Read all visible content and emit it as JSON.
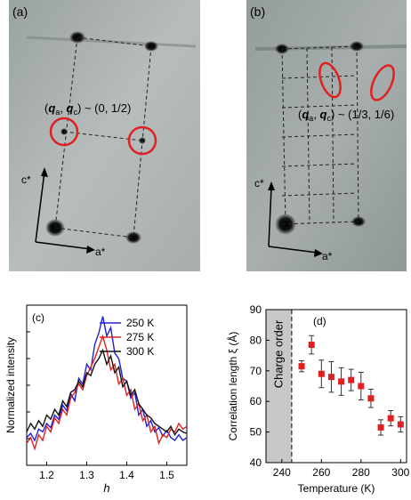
{
  "panel_a": {
    "label": "(a)",
    "annotation": {
      "prefix": "(",
      "qa": "q",
      "qa_sub": "a",
      "sep": ", ",
      "qc": "q",
      "qc_sub": "c",
      "suffix": ") ~ (0, 1/2)"
    },
    "axis_c": "c*",
    "axis_a": "a*"
  },
  "panel_b": {
    "label": "(b)",
    "annotation": {
      "prefix": "(",
      "qa": "q",
      "qa_sub": "a",
      "sep": ", ",
      "qc": "q",
      "qc_sub": "c",
      "suffix": ") ~ (1/3, 1/6)"
    },
    "axis_c": "c*",
    "axis_a": "a*"
  },
  "chart_data": [
    {
      "type": "line",
      "panel_label": "(c)",
      "xlabel": "h",
      "ylabel": "Normalized intensity",
      "xlim": [
        1.15,
        1.55
      ],
      "xticks": [
        "1.2",
        "1.3",
        "1.4",
        "1.5"
      ],
      "xtick_values": [
        1.2,
        1.3,
        1.4,
        1.5
      ],
      "legend_placement": "top-right",
      "series": [
        {
          "name": "250 K",
          "color": "#1f1fd6",
          "x": [
            1.15,
            1.16,
            1.17,
            1.18,
            1.19,
            1.2,
            1.21,
            1.22,
            1.23,
            1.24,
            1.25,
            1.26,
            1.27,
            1.28,
            1.29,
            1.3,
            1.31,
            1.32,
            1.33,
            1.34,
            1.35,
            1.36,
            1.37,
            1.38,
            1.39,
            1.4,
            1.41,
            1.42,
            1.43,
            1.44,
            1.45,
            1.46,
            1.47,
            1.48,
            1.49,
            1.5,
            1.51,
            1.52,
            1.53,
            1.54,
            1.55
          ],
          "y": [
            0.14,
            0.17,
            0.12,
            0.2,
            0.18,
            0.24,
            0.21,
            0.3,
            0.27,
            0.37,
            0.33,
            0.45,
            0.4,
            0.56,
            0.52,
            0.66,
            0.62,
            0.8,
            0.88,
            1.0,
            0.86,
            0.92,
            0.74,
            0.7,
            0.56,
            0.54,
            0.42,
            0.46,
            0.3,
            0.34,
            0.22,
            0.26,
            0.18,
            0.21,
            0.15,
            0.19,
            0.14,
            0.12,
            0.16,
            0.12,
            0.14
          ]
        },
        {
          "name": "275 K",
          "color": "#e02020",
          "x": [
            1.15,
            1.16,
            1.17,
            1.18,
            1.19,
            1.2,
            1.21,
            1.22,
            1.23,
            1.24,
            1.25,
            1.26,
            1.27,
            1.28,
            1.29,
            1.3,
            1.31,
            1.32,
            1.33,
            1.34,
            1.35,
            1.36,
            1.37,
            1.38,
            1.39,
            1.4,
            1.41,
            1.42,
            1.43,
            1.44,
            1.45,
            1.46,
            1.47,
            1.48,
            1.49,
            1.5,
            1.51,
            1.52,
            1.53,
            1.54,
            1.55
          ],
          "y": [
            0.1,
            0.14,
            0.06,
            0.16,
            0.12,
            0.22,
            0.18,
            0.28,
            0.24,
            0.34,
            0.3,
            0.42,
            0.46,
            0.52,
            0.48,
            0.58,
            0.64,
            0.7,
            0.78,
            0.86,
            0.76,
            0.62,
            0.66,
            0.52,
            0.56,
            0.44,
            0.48,
            0.34,
            0.38,
            0.26,
            0.3,
            0.18,
            0.22,
            0.1,
            0.16,
            0.14,
            0.2,
            0.18,
            0.24,
            0.2,
            0.22
          ]
        },
        {
          "name": "300 K",
          "color": "#111111",
          "x": [
            1.15,
            1.16,
            1.17,
            1.18,
            1.19,
            1.2,
            1.21,
            1.22,
            1.23,
            1.24,
            1.25,
            1.26,
            1.27,
            1.28,
            1.29,
            1.3,
            1.31,
            1.32,
            1.33,
            1.34,
            1.35,
            1.36,
            1.37,
            1.38,
            1.39,
            1.4,
            1.41,
            1.42,
            1.43,
            1.44,
            1.45,
            1.46,
            1.47,
            1.48,
            1.49,
            1.5,
            1.51,
            1.52,
            1.53,
            1.54,
            1.55
          ],
          "y": [
            0.18,
            0.24,
            0.2,
            0.26,
            0.22,
            0.3,
            0.27,
            0.34,
            0.3,
            0.4,
            0.36,
            0.46,
            0.48,
            0.54,
            0.5,
            0.6,
            0.58,
            0.66,
            0.7,
            0.76,
            0.66,
            0.72,
            0.6,
            0.64,
            0.5,
            0.54,
            0.44,
            0.48,
            0.38,
            0.34,
            0.3,
            0.28,
            0.24,
            0.22,
            0.2,
            0.18,
            0.22,
            0.16,
            0.2,
            0.18,
            0.17
          ]
        }
      ]
    },
    {
      "type": "scatter",
      "panel_label": "(d)",
      "xlabel": "Temperature (K)",
      "ylabel": "Correlation length ξ (Å)",
      "xlim": [
        232,
        303
      ],
      "ylim": [
        40,
        90
      ],
      "xticks": [
        "240",
        "260",
        "280",
        "300"
      ],
      "xtick_values": [
        240,
        260,
        280,
        300
      ],
      "yticks": [
        "40",
        "50",
        "60",
        "70",
        "80",
        "90"
      ],
      "ytick_values": [
        40,
        50,
        60,
        70,
        80,
        90
      ],
      "shaded_region": {
        "label": "Charge order",
        "x_from": 232,
        "x_to": 245
      },
      "marker_color": "#e02020",
      "points": [
        {
          "x": 250,
          "y": 71.5,
          "err": 1.8
        },
        {
          "x": 255,
          "y": 78.5,
          "err": 3.0
        },
        {
          "x": 260,
          "y": 69.0,
          "err": 4.5
        },
        {
          "x": 265,
          "y": 68.0,
          "err": 5.0
        },
        {
          "x": 270,
          "y": 66.5,
          "err": 4.5
        },
        {
          "x": 275,
          "y": 67.0,
          "err": 3.5
        },
        {
          "x": 280,
          "y": 65.0,
          "err": 4.5
        },
        {
          "x": 285,
          "y": 61.0,
          "err": 3.0
        },
        {
          "x": 290,
          "y": 51.5,
          "err": 2.5
        },
        {
          "x": 295,
          "y": 54.5,
          "err": 2.5
        },
        {
          "x": 300,
          "y": 52.5,
          "err": 2.5
        }
      ]
    }
  ]
}
